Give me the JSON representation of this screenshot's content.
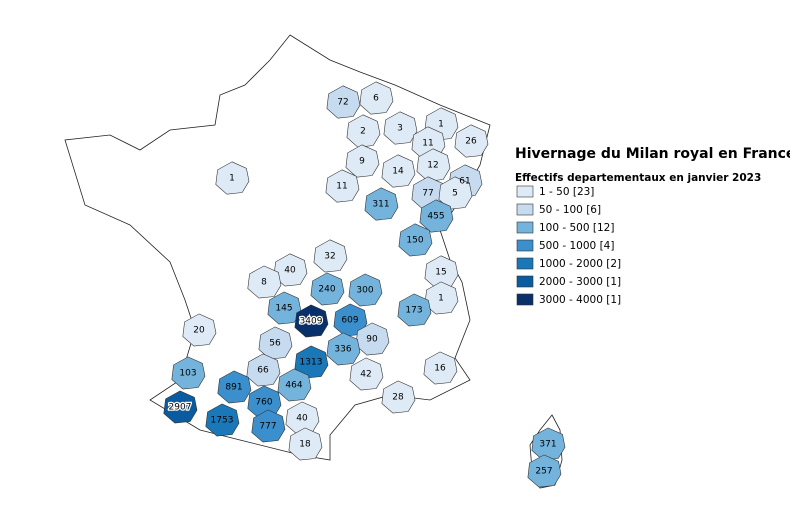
{
  "title": "Hivernage du Milan royal en France",
  "legend": {
    "title": "Effectifs departementaux en janvier 2023",
    "items": [
      {
        "label": "1 - 50 [23]",
        "color": "#deebf7"
      },
      {
        "label": "50 - 100 [6]",
        "color": "#c6dbef"
      },
      {
        "label": "100 - 500 [12]",
        "color": "#74b3db"
      },
      {
        "label": "500 - 1000 [4]",
        "color": "#3b8fcc"
      },
      {
        "label": "1000 - 2000 [2]",
        "color": "#1a77b8"
      },
      {
        "label": "2000 - 3000 [1]",
        "color": "#0b5ba0"
      },
      {
        "label": "3000 - 4000 [1]",
        "color": "#08306b"
      }
    ]
  },
  "departments": [
    {
      "value": 72,
      "color": "#c6dbef"
    },
    {
      "value": 6,
      "color": "#deebf7"
    },
    {
      "value": 2,
      "color": "#deebf7"
    },
    {
      "value": 3,
      "color": "#deebf7"
    },
    {
      "value": 1,
      "color": "#deebf7"
    },
    {
      "value": 11,
      "color": "#deebf7"
    },
    {
      "value": 26,
      "color": "#deebf7"
    },
    {
      "value": 9,
      "color": "#deebf7"
    },
    {
      "value": 14,
      "color": "#deebf7"
    },
    {
      "value": 12,
      "color": "#deebf7"
    },
    {
      "value": 61,
      "color": "#c6dbef"
    },
    {
      "value": 1,
      "color": "#deebf7"
    },
    {
      "value": 11,
      "color": "#deebf7"
    },
    {
      "value": 77,
      "color": "#c6dbef"
    },
    {
      "value": 5,
      "color": "#deebf7"
    },
    {
      "value": 311,
      "color": "#74b3db"
    },
    {
      "value": 455,
      "color": "#74b3db"
    },
    {
      "value": 150,
      "color": "#74b3db"
    },
    {
      "value": 32,
      "color": "#deebf7"
    },
    {
      "value": 15,
      "color": "#deebf7"
    },
    {
      "value": 40,
      "color": "#deebf7"
    },
    {
      "value": 8,
      "color": "#deebf7"
    },
    {
      "value": 240,
      "color": "#74b3db"
    },
    {
      "value": 300,
      "color": "#74b3db"
    },
    {
      "value": 1,
      "color": "#deebf7"
    },
    {
      "value": 145,
      "color": "#74b3db"
    },
    {
      "value": 173,
      "color": "#74b3db"
    },
    {
      "value": 3409,
      "color": "#08306b"
    },
    {
      "value": 609,
      "color": "#3b8fcc"
    },
    {
      "value": 20,
      "color": "#deebf7"
    },
    {
      "value": 56,
      "color": "#c6dbef"
    },
    {
      "value": 90,
      "color": "#c6dbef"
    },
    {
      "value": 336,
      "color": "#74b3db"
    },
    {
      "value": 1313,
      "color": "#1a77b8"
    },
    {
      "value": 103,
      "color": "#74b3db"
    },
    {
      "value": 16,
      "color": "#deebf7"
    },
    {
      "value": 42,
      "color": "#deebf7"
    },
    {
      "value": 66,
      "color": "#c6dbef"
    },
    {
      "value": 891,
      "color": "#3b8fcc"
    },
    {
      "value": 464,
      "color": "#74b3db"
    },
    {
      "value": 760,
      "color": "#3b8fcc"
    },
    {
      "value": 28,
      "color": "#deebf7"
    },
    {
      "value": 2907,
      "color": "#0b5ba0"
    },
    {
      "value": 40,
      "color": "#deebf7"
    },
    {
      "value": 1753,
      "color": "#1a77b8"
    },
    {
      "value": 777,
      "color": "#3b8fcc"
    },
    {
      "value": 18,
      "color": "#deebf7"
    },
    {
      "value": 371,
      "color": "#74b3db"
    },
    {
      "value": 257,
      "color": "#74b3db"
    }
  ]
}
